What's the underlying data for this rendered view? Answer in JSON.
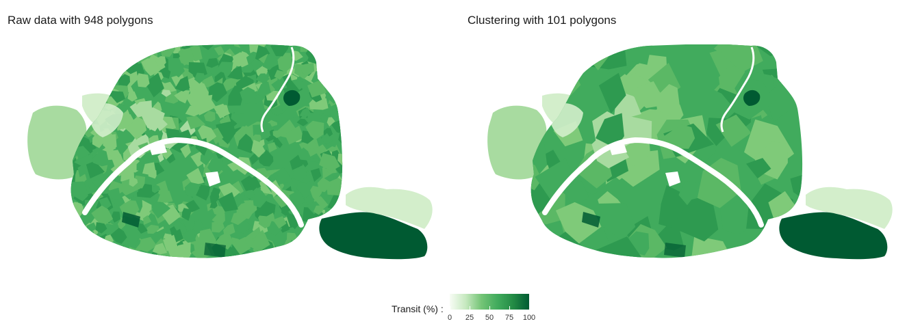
{
  "panels": {
    "left": {
      "title": "Raw data with 948 polygons"
    },
    "right": {
      "title": "Clustering with 101 polygons"
    }
  },
  "legend": {
    "title": "Transit (%) :",
    "ticks": [
      {
        "label": "0",
        "value": 0
      },
      {
        "label": "25",
        "value": 25
      },
      {
        "label": "50",
        "value": 50
      },
      {
        "label": "75",
        "value": 75
      },
      {
        "label": "100",
        "value": 100
      }
    ],
    "gradient": [
      "#f7fcf5",
      "#c7e9c0",
      "#74c476",
      "#41ab5d",
      "#238b45",
      "#005a32"
    ],
    "range": [
      0,
      100
    ]
  },
  "map_colors": {
    "very_light": "#d3eecb",
    "light": "#a8dba0",
    "mid_light": "#7fca79",
    "mid": "#5bb865",
    "main": "#41ab5d",
    "dark": "#2e9a50",
    "very_dark": "#005a32",
    "river": "#ffffff"
  }
}
